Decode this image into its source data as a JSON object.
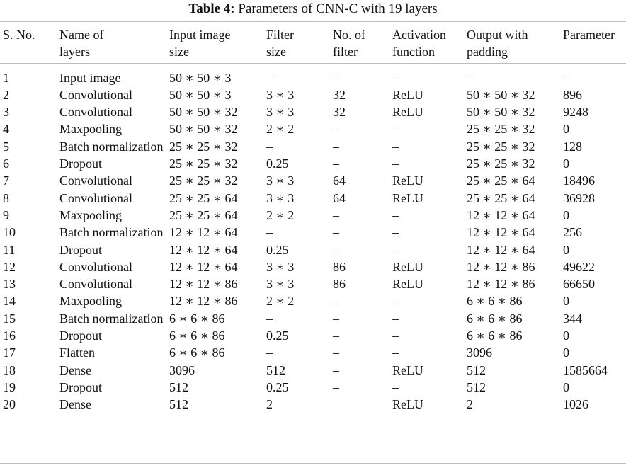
{
  "title": {
    "label": "Table 4:",
    "text": "Parameters of CNN-C with 19 layers"
  },
  "columns": [
    [
      "S. No.",
      ""
    ],
    [
      "Name of",
      "layers"
    ],
    [
      "Input image",
      "size"
    ],
    [
      "Filter",
      "size"
    ],
    [
      "No. of",
      "filter"
    ],
    [
      "Activation",
      "function"
    ],
    [
      "Output with",
      "padding"
    ],
    [
      "Parameter",
      ""
    ]
  ],
  "rows": [
    [
      "1",
      "Input image",
      "50 ∗ 50 ∗ 3",
      "–",
      "–",
      "–",
      "–",
      "–"
    ],
    [
      "2",
      "Convolutional",
      "50 ∗ 50 ∗ 3",
      "3 ∗ 3",
      "32",
      "ReLU",
      "50 ∗ 50 ∗ 32",
      "896"
    ],
    [
      "3",
      "Convolutional",
      "50 ∗ 50 ∗ 32",
      "3 ∗ 3",
      "32",
      "ReLU",
      "50 ∗ 50 ∗ 32",
      "9248"
    ],
    [
      "4",
      "Maxpooling",
      "50 ∗ 50 ∗ 32",
      "2 ∗ 2",
      "–",
      "–",
      "25 ∗ 25 ∗ 32",
      "0"
    ],
    [
      "5",
      "Batch normalization",
      "25 ∗ 25 ∗ 32",
      "–",
      "–",
      "–",
      "25 ∗ 25 ∗ 32",
      "128"
    ],
    [
      "6",
      "Dropout",
      "25 ∗ 25 ∗ 32",
      "0.25",
      "–",
      "–",
      "25 ∗ 25 ∗ 32",
      "0"
    ],
    [
      "7",
      "Convolutional",
      "25 ∗ 25 ∗ 32",
      "3 ∗ 3",
      "64",
      "ReLU",
      "25 ∗ 25 ∗ 64",
      "18496"
    ],
    [
      "8",
      "Convolutional",
      "25 ∗ 25 ∗ 64",
      "3 ∗ 3",
      "64",
      "ReLU",
      "25 ∗ 25 ∗ 64",
      "36928"
    ],
    [
      "9",
      "Maxpooling",
      "25 ∗ 25 ∗ 64",
      "2 ∗ 2",
      "–",
      "–",
      "12 ∗ 12 ∗ 64",
      "0"
    ],
    [
      "10",
      "Batch normalization",
      "12 ∗ 12 ∗ 64",
      "–",
      "–",
      "–",
      "12 ∗ 12 ∗ 64",
      "256"
    ],
    [
      "11",
      "Dropout",
      "12 ∗ 12 ∗ 64",
      "0.25",
      "–",
      "–",
      "12 ∗ 12 ∗ 64",
      "0"
    ],
    [
      "12",
      "Convolutional",
      "12 ∗ 12 ∗ 64",
      "3 ∗ 3",
      "86",
      "ReLU",
      "12 ∗ 12 ∗ 86",
      "49622"
    ],
    [
      "13",
      "Convolutional",
      "12 ∗ 12 ∗ 86",
      "3 ∗ 3",
      "86",
      "ReLU",
      "12 ∗ 12 ∗ 86",
      "66650"
    ],
    [
      "14",
      "Maxpooling",
      "12 ∗ 12 ∗ 86",
      "2 ∗ 2",
      "–",
      "–",
      "6 ∗ 6 ∗ 86",
      "0"
    ],
    [
      "15",
      "Batch normalization",
      "6 ∗ 6 ∗ 86",
      "–",
      "–",
      "–",
      "6 ∗ 6 ∗ 86",
      "344"
    ],
    [
      "16",
      "Dropout",
      "6 ∗ 6 ∗ 86",
      "0.25",
      "–",
      "–",
      "6 ∗ 6 ∗ 86",
      "0"
    ],
    [
      "17",
      "Flatten",
      "6 ∗ 6 ∗ 86",
      "–",
      "–",
      "–",
      "3096",
      "0"
    ],
    [
      "18",
      "Dense",
      "3096",
      "512",
      "–",
      "ReLU",
      "512",
      "1585664"
    ],
    [
      "19",
      "Dropout",
      "512",
      "0.25",
      "–",
      "–",
      "512",
      "0"
    ],
    [
      "20",
      "Dense",
      "512",
      "2",
      "",
      "ReLU",
      "2",
      "1026"
    ]
  ]
}
